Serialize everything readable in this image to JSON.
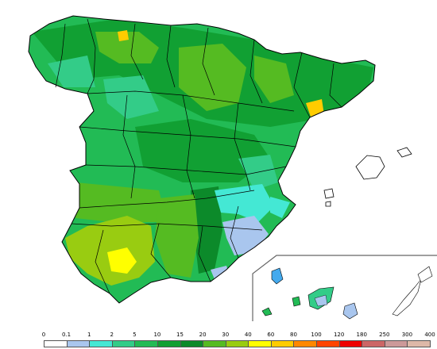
{
  "legend": {
    "thresholds": [
      "0",
      "0.1",
      "1",
      "2",
      "5",
      "10",
      "15",
      "20",
      "30",
      "40",
      "60",
      "80",
      "100",
      "120",
      "180",
      "250",
      "300",
      "400"
    ],
    "colors": [
      "#ffffff",
      "#a9c6ee",
      "#44e8d4",
      "#33cc88",
      "#22bb55",
      "#11a033",
      "#0c8a2a",
      "#55bb22",
      "#99cc11",
      "#ffff00",
      "#ffcc00",
      "#ff8800",
      "#ff4400",
      "#ee0000",
      "#cc6666",
      "#cc9999",
      "#ddb8a8"
    ]
  },
  "palette": {
    "outline": "#000000",
    "inset_frame": "#666666",
    "sea": "#ffffff"
  }
}
